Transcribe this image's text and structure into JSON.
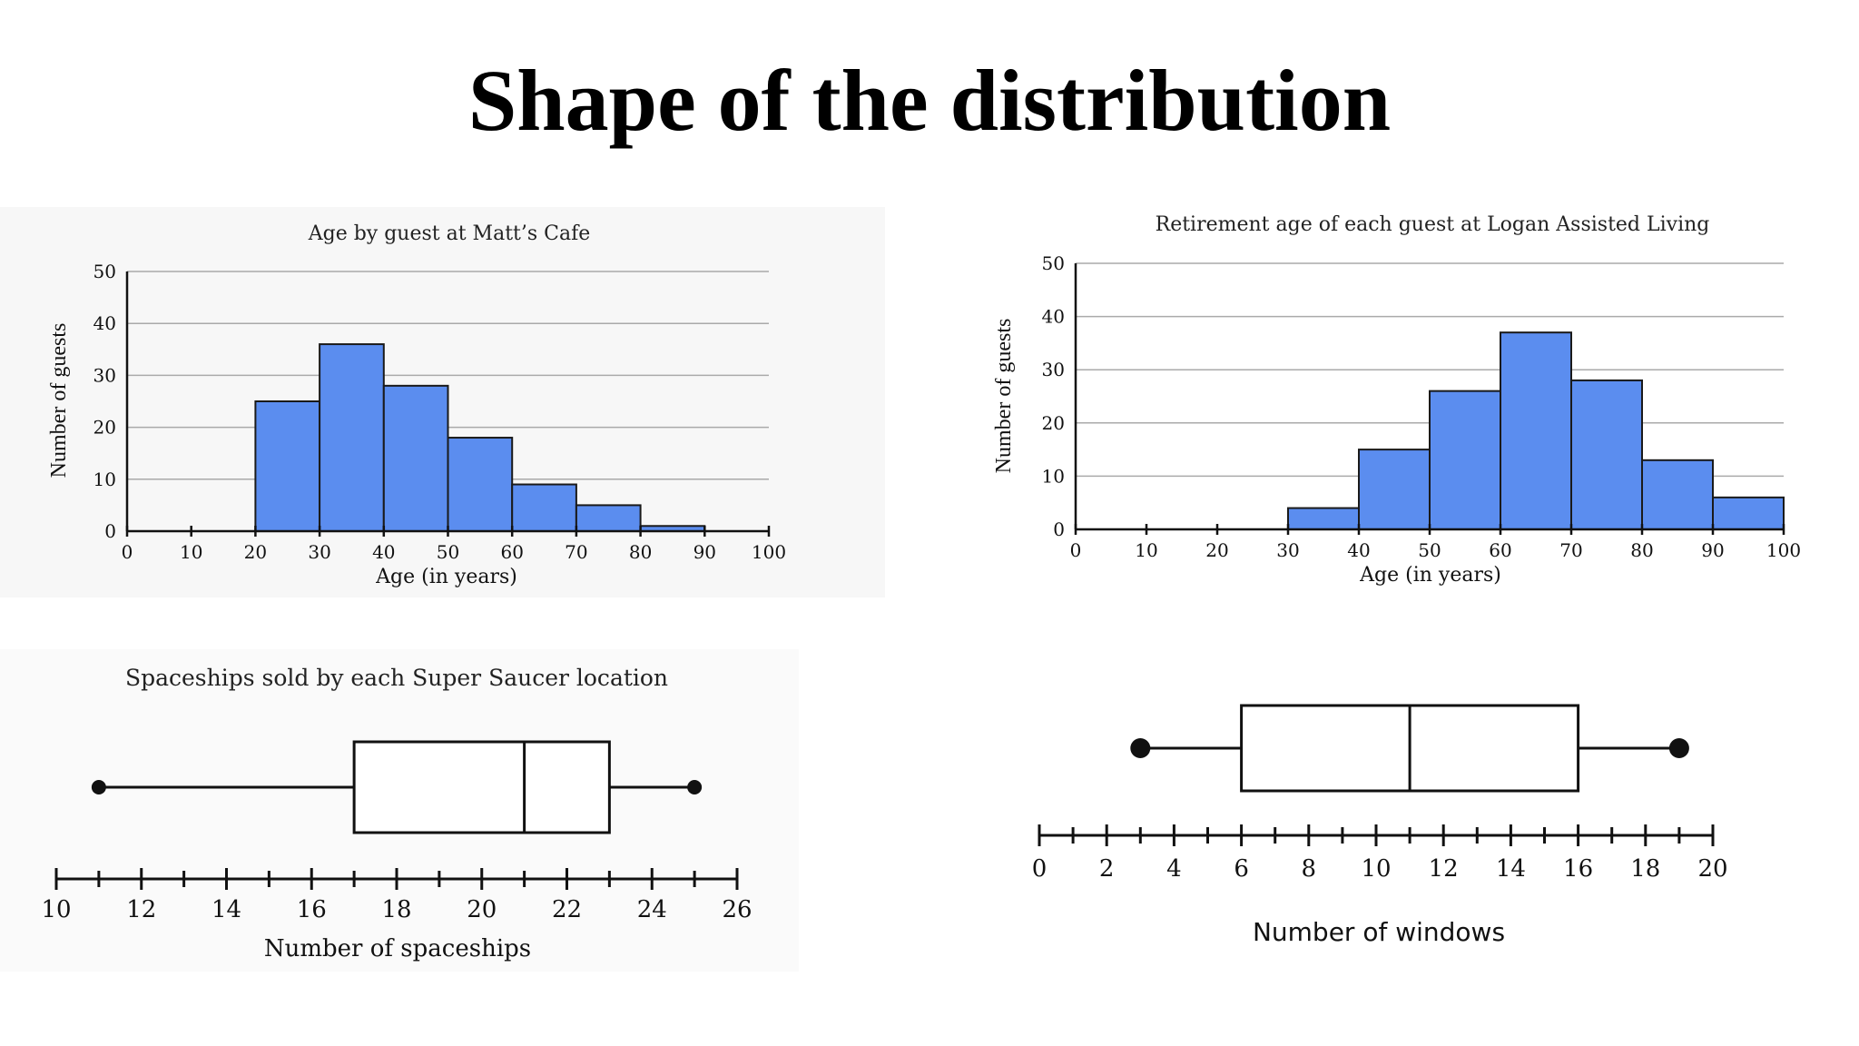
{
  "slide": {
    "title": "Shape of the distribution"
  },
  "chart_data": [
    {
      "type": "bar",
      "subtype": "histogram",
      "title": "Age by guest at Matt’s Cafe",
      "xlabel": "Age (in years)",
      "ylabel": "Number of guests",
      "bins": [
        [
          20,
          30
        ],
        [
          30,
          40
        ],
        [
          40,
          50
        ],
        [
          50,
          60
        ],
        [
          60,
          70
        ],
        [
          70,
          80
        ],
        [
          80,
          90
        ]
      ],
      "values": [
        25,
        36,
        28,
        18,
        9,
        5,
        1
      ],
      "xlim": [
        0,
        100
      ],
      "ylim": [
        0,
        50
      ],
      "xticks": [
        0,
        10,
        20,
        30,
        40,
        50,
        60,
        70,
        80,
        90,
        100
      ],
      "yticks": [
        0,
        10,
        20,
        30,
        40,
        50
      ],
      "bar_color": "#5b8def",
      "grid": "horizontal"
    },
    {
      "type": "bar",
      "subtype": "histogram",
      "title": "Retirement age of each guest at Logan Assisted Living",
      "xlabel": "Age (in years)",
      "ylabel": "Number of guests",
      "bins": [
        [
          30,
          40
        ],
        [
          40,
          50
        ],
        [
          50,
          60
        ],
        [
          60,
          70
        ],
        [
          70,
          80
        ],
        [
          80,
          90
        ],
        [
          90,
          100
        ]
      ],
      "values": [
        4,
        15,
        26,
        37,
        28,
        13,
        6
      ],
      "xlim": [
        0,
        100
      ],
      "ylim": [
        0,
        50
      ],
      "xticks": [
        0,
        10,
        20,
        30,
        40,
        50,
        60,
        70,
        80,
        90,
        100
      ],
      "yticks": [
        0,
        10,
        20,
        30,
        40,
        50
      ],
      "bar_color": "#5b8def",
      "grid": "horizontal"
    },
    {
      "type": "boxplot",
      "title": "Spaceships sold by each Super Saucer location",
      "xlabel": "Number of spaceships",
      "min": 11,
      "q1": 17,
      "median": 21,
      "q3": 23,
      "max": 25,
      "xlim": [
        10,
        26
      ],
      "xticks": [
        10,
        12,
        14,
        16,
        18,
        20,
        22,
        24,
        26
      ],
      "minor_step": 1
    },
    {
      "type": "boxplot",
      "title": "",
      "xlabel": "Number of windows",
      "min": 3,
      "q1": 6,
      "median": 11,
      "q3": 16,
      "max": 19,
      "xlim": [
        0,
        20
      ],
      "xticks": [
        0,
        2,
        4,
        6,
        8,
        10,
        12,
        14,
        16,
        18,
        20
      ],
      "minor_step": 1
    }
  ]
}
